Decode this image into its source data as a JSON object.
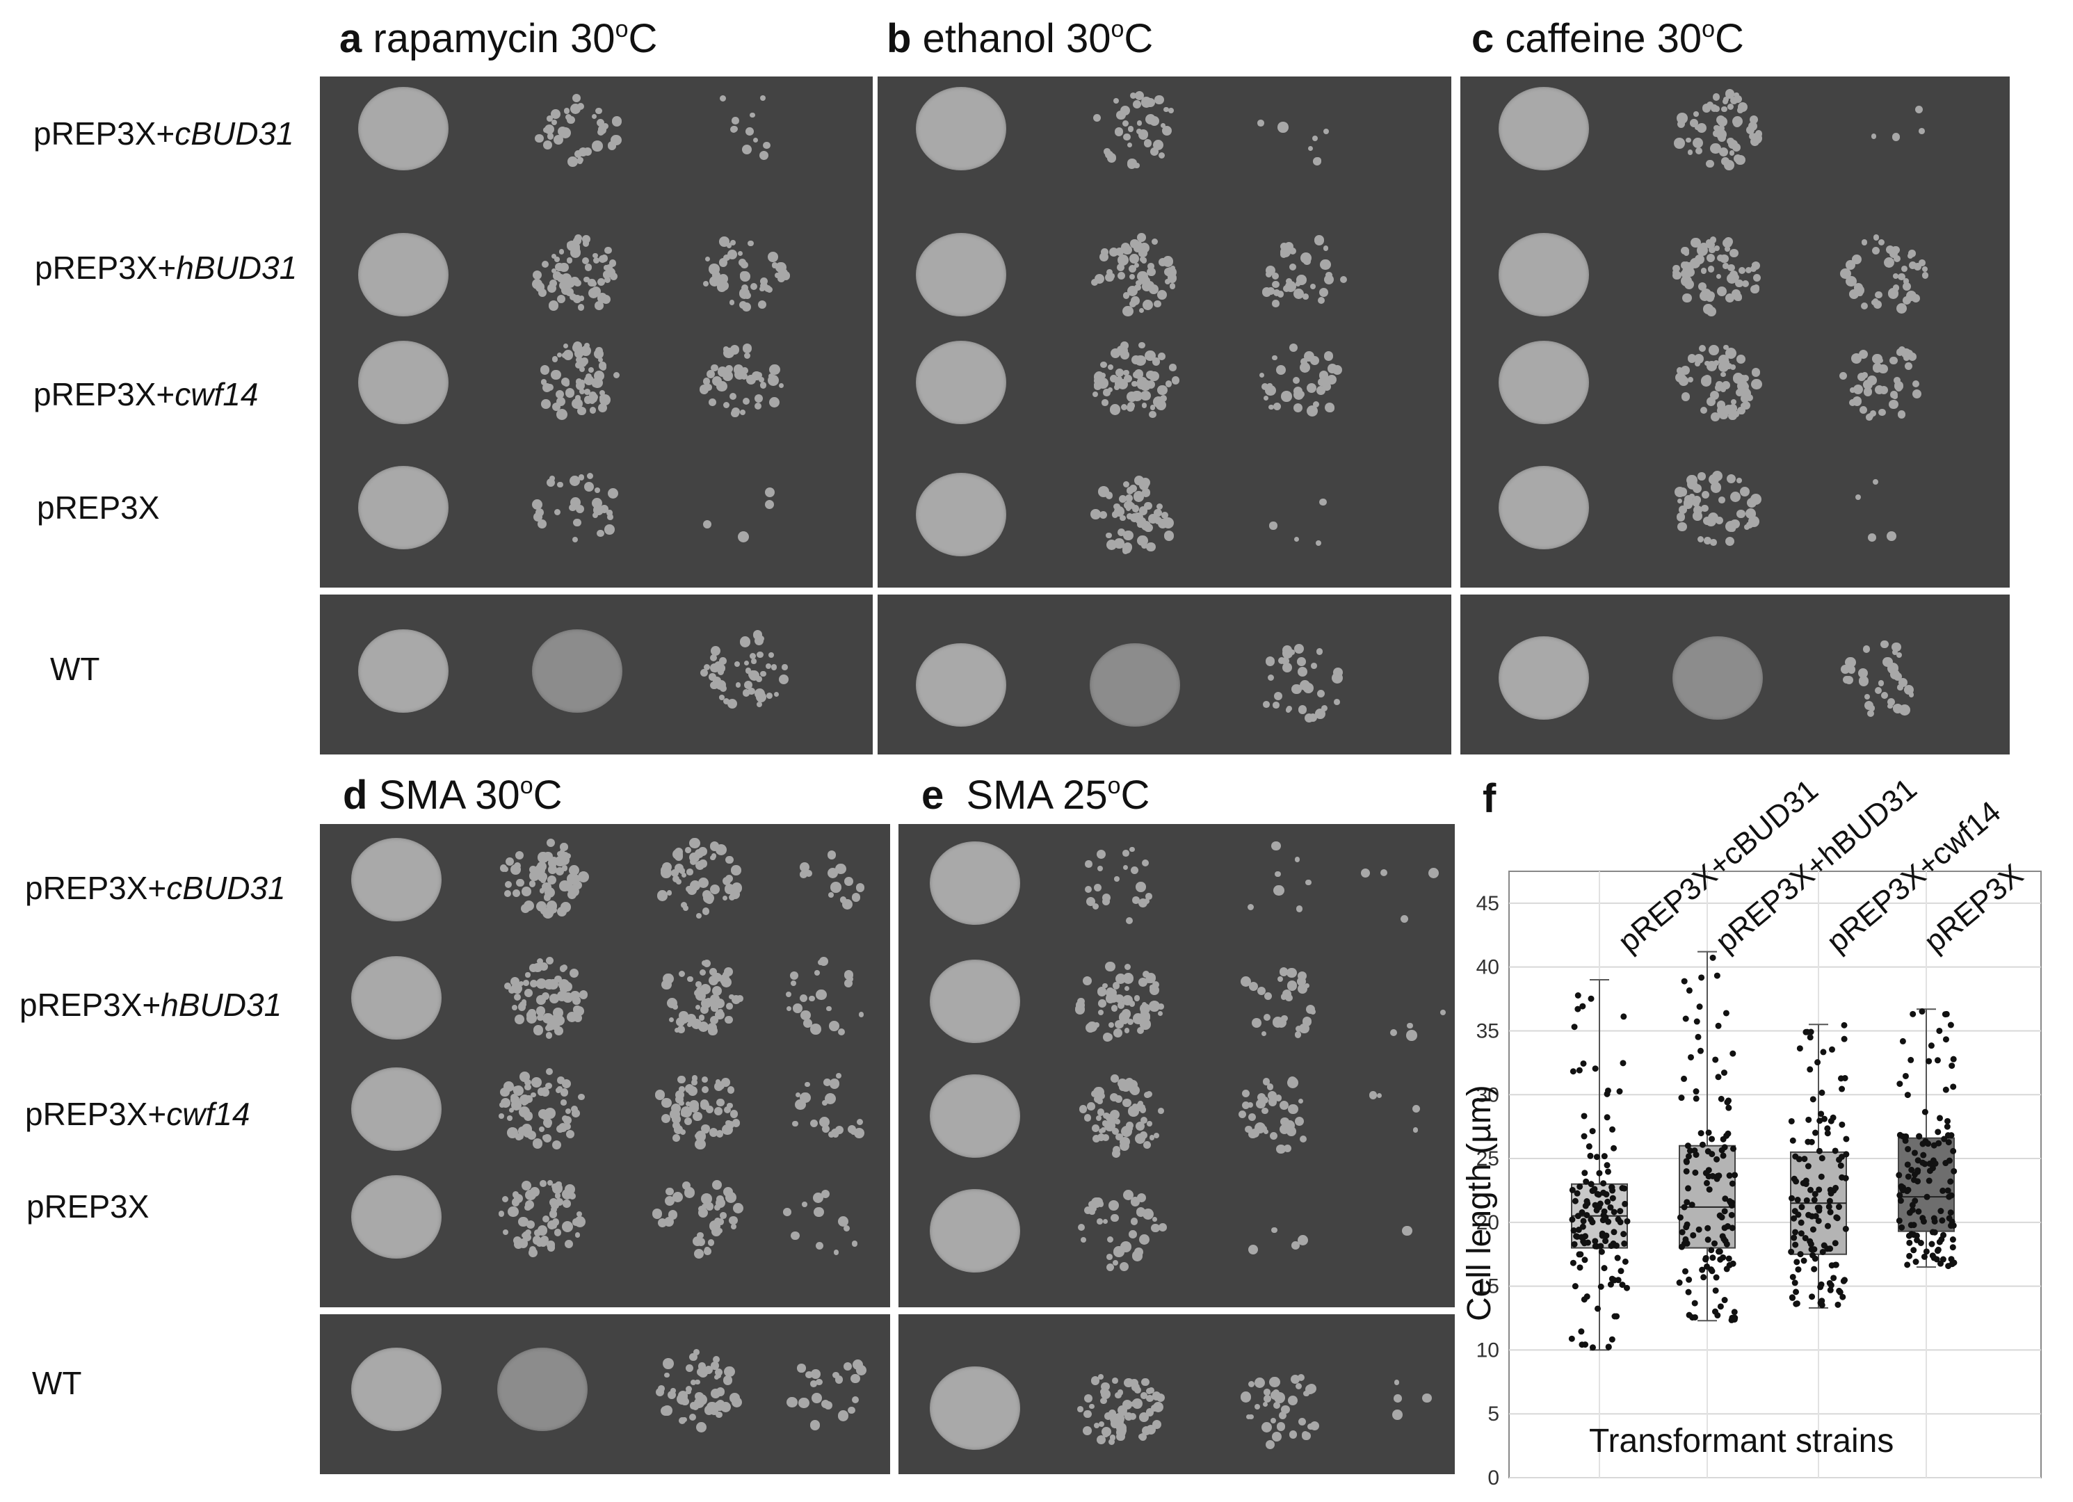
{
  "panels": [
    {
      "letter": "a",
      "condition": "rapamycin 30",
      "sup": "o",
      "unit": "C"
    },
    {
      "letter": "b",
      "condition": "ethanol 30",
      "sup": "o",
      "unit": "C"
    },
    {
      "letter": "c",
      "condition": "caffeine 30",
      "sup": "o",
      "unit": "C"
    },
    {
      "letter": "d",
      "condition": "SMA 30",
      "sup": "o",
      "unit": "C"
    },
    {
      "letter": "e",
      "condition": "SMA 25",
      "sup": "o",
      "unit": "C"
    },
    {
      "letter": "f"
    }
  ],
  "row_labels": [
    {
      "prefix": "pREP3X+",
      "gene": "cBUD31"
    },
    {
      "prefix": "pREP3X+",
      "gene": "hBUD31"
    },
    {
      "prefix": "pREP3X+",
      "gene": "cwf14"
    },
    {
      "prefix": "pREP3X",
      "gene": ""
    },
    {
      "prefix": "WT",
      "gene": ""
    }
  ],
  "colors": {
    "plate": "#434343",
    "spot": "#a8a8a8",
    "box_light": "#c8c8c8",
    "box_dark": "#6e6e6e"
  },
  "chart_data": {
    "type": "box",
    "categories": [
      "pREP3X+cBUD31",
      "pREP3X+hBUD31",
      "pREP3X+cwf14",
      "pREP3X"
    ],
    "ylabel": "Cell length (µm)",
    "xlabel": "Transformant strains",
    "ylim": [
      0,
      45
    ],
    "yticks": [
      0,
      5,
      10,
      15,
      20,
      25,
      30,
      35,
      40,
      45
    ],
    "grid": true,
    "boxes": [
      {
        "whisker_low": 10,
        "q1": 18,
        "median": 20.5,
        "q3": 23,
        "whisker_high": 39
      },
      {
        "whisker_low": 12.3,
        "q1": 18,
        "median": 21.2,
        "q3": 26,
        "whisker_high": 41.2
      },
      {
        "whisker_low": 13.3,
        "q1": 17.5,
        "median": 21.5,
        "q3": 25.5,
        "whisker_high": 35.5
      },
      {
        "whisker_low": 16.5,
        "q1": 19.3,
        "median": 22,
        "q3": 26.6,
        "whisker_high": 36.7
      }
    ]
  }
}
